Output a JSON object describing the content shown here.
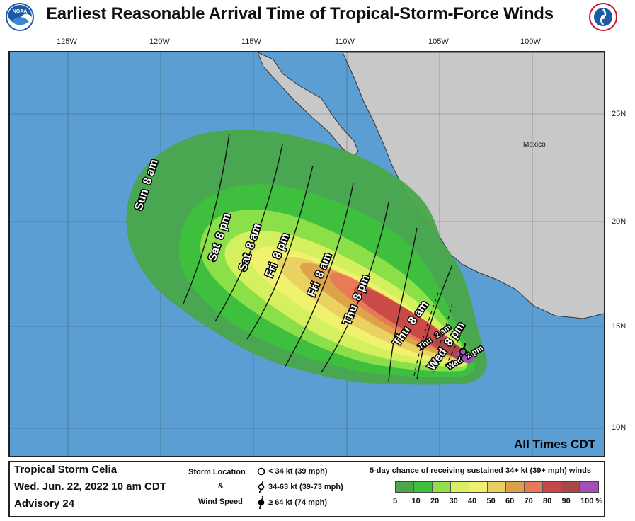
{
  "header": {
    "title": "Earliest Reasonable Arrival Time of Tropical-Storm-Force Winds"
  },
  "map": {
    "lon_labels": [
      "125W",
      "120W",
      "115W",
      "110W",
      "105W",
      "100W"
    ],
    "lat_labels": [
      "25N",
      "20N",
      "15N",
      "10N"
    ],
    "land_label": "Mexico",
    "all_times": "All Times CDT",
    "arrival_labels": [
      {
        "day": "Sun",
        "time": "8 am"
      },
      {
        "day": "Sat",
        "time": "8 pm"
      },
      {
        "day": "Sat",
        "time": "8 am"
      },
      {
        "day": "Fri",
        "time": "8 pm"
      },
      {
        "day": "Fri",
        "time": "8 am"
      },
      {
        "day": "Thu",
        "time": "8 pm"
      },
      {
        "day": "Thu",
        "time": "8 am"
      },
      {
        "day": "Thu",
        "time": "2 am"
      },
      {
        "day": "Wed",
        "time": "8 pm"
      },
      {
        "day": "Wed",
        "time": "2 pm"
      }
    ],
    "colors": {
      "ocean": "#5b9ed3",
      "land": "#c8c8c8",
      "storm_center": "#8a4cab"
    }
  },
  "legend": {
    "storm_name": "Tropical Storm Celia",
    "issued": "Wed. Jun. 22, 2022  10 am CDT",
    "advisory": "Advisory 24",
    "storm_location_label": "Storm Location",
    "amp": "&",
    "wind_speed_label": "Wind Speed",
    "wind_levels": [
      {
        "symbol": "open-circle-icon",
        "text": "< 34 kt (39 mph)"
      },
      {
        "symbol": "tropical-storm-icon",
        "text": "34-63 kt (39-73 mph)"
      },
      {
        "symbol": "hurricane-icon",
        "text": "≥ 64 kt (74 mph)"
      }
    ],
    "prob_title": "5-day chance of receiving sustained 34+ kt (39+ mph) winds",
    "prob_colors": [
      "#4aa84a",
      "#3dc03d",
      "#8fe04a",
      "#d8f060",
      "#f0f070",
      "#e8d060",
      "#dca048",
      "#e87858",
      "#c84848",
      "#a84848",
      "#a050b8"
    ],
    "prob_ticks": [
      "5",
      "10",
      "20",
      "30",
      "40",
      "50",
      "60",
      "70",
      "80",
      "90",
      "100 %"
    ]
  }
}
